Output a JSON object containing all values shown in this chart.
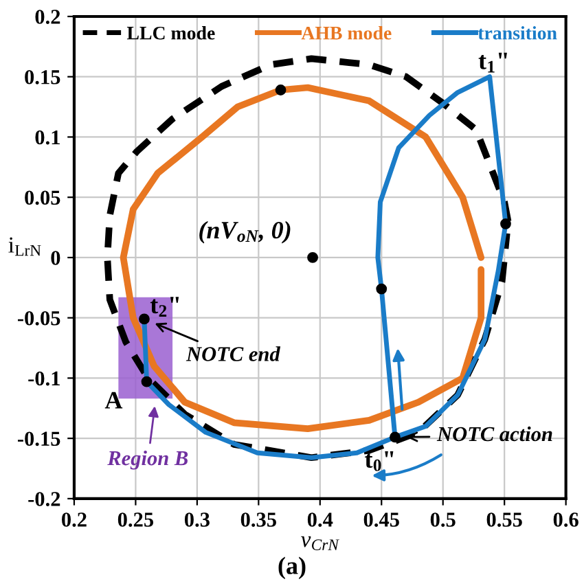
{
  "chart_data": {
    "type": "line",
    "xlabel": "v$_{CrN}$",
    "ylabel": "i$_{LrN}$",
    "xlim": [
      0.2,
      0.6
    ],
    "xticks": [
      0.2,
      0.25,
      0.3,
      0.35,
      0.4,
      0.45,
      0.5,
      0.55,
      0.6
    ],
    "ylim": [
      -0.2,
      0.2
    ],
    "yticks": [
      -0.2,
      -0.15,
      -0.1,
      -0.05,
      0,
      0.05,
      0.1,
      0.15,
      0.2
    ],
    "grid": true,
    "legend": "top",
    "series": [
      {
        "name": "LLC mode",
        "line_style": "dashed",
        "color": "#000000",
        "x": [
          0.553,
          0.55,
          0.527,
          0.5,
          0.47,
          0.44,
          0.393,
          0.36,
          0.32,
          0.28,
          0.251,
          0.236,
          0.229,
          0.227,
          0.229,
          0.242,
          0.26,
          0.29,
          0.33,
          0.393,
          0.44,
          0.48,
          0.512,
          0.534,
          0.548,
          0.552
        ],
        "values": [
          0.03,
          0.046,
          0.106,
          0.128,
          0.15,
          0.16,
          0.165,
          0.16,
          0.142,
          0.115,
          0.088,
          0.07,
          0.035,
          0.0,
          -0.035,
          -0.07,
          -0.1,
          -0.13,
          -0.155,
          -0.166,
          -0.16,
          -0.145,
          -0.114,
          -0.068,
          -0.02,
          0.02
        ]
      },
      {
        "name": "AHB mode",
        "line_style": "solid",
        "color": "#e87722",
        "x": [
          0.531,
          0.516,
          0.486,
          0.44,
          0.39,
          0.368,
          0.333,
          0.304,
          0.268,
          0.248,
          0.24,
          0.248,
          0.265,
          0.29,
          0.33,
          0.39,
          0.44,
          0.48,
          0.516,
          0.531,
          0.531
        ],
        "values": [
          0.0,
          0.05,
          0.1,
          0.13,
          0.141,
          0.139,
          0.125,
          0.1,
          0.07,
          0.04,
          0.0,
          -0.05,
          -0.09,
          -0.12,
          -0.137,
          -0.142,
          -0.135,
          -0.12,
          -0.1,
          -0.05,
          -0.01
        ]
      },
      {
        "name": "transition",
        "line_style": "solid",
        "color": "#1a7cc8",
        "x": [
          0.461,
          0.45,
          0.447,
          0.449,
          0.464,
          0.489,
          0.512,
          0.538,
          0.551,
          0.545,
          0.534,
          0.512,
          0.486,
          0.461,
          0.43,
          0.393,
          0.349,
          0.307,
          0.277,
          0.259,
          0.257
        ],
        "values": [
          -0.149,
          -0.026,
          0.0,
          0.046,
          0.091,
          0.118,
          0.137,
          0.15,
          0.028,
          -0.011,
          -0.068,
          -0.114,
          -0.14,
          -0.149,
          -0.162,
          -0.166,
          -0.162,
          -0.145,
          -0.122,
          -0.103,
          -0.051
        ]
      },
      {
        "type": "scatter",
        "marker": "circle",
        "color": "#000000",
        "x": [
          0.368,
          0.551,
          0.45,
          0.461,
          0.259,
          0.257,
          0.394
        ],
        "values": [
          0.139,
          0.028,
          -0.026,
          -0.149,
          -0.103,
          -0.051,
          0.0
        ]
      }
    ],
    "annotations": [
      {
        "text": "t$_{1}$\"",
        "x": 0.538,
        "y": 0.15
      },
      {
        "text": "t$_{0}$\"",
        "x": 0.461,
        "y": -0.149
      },
      {
        "text": "t$_{2}$\"",
        "x": 0.257,
        "y": -0.051
      },
      {
        "text": "A",
        "x": 0.259,
        "y": -0.103
      },
      {
        "text": "(nV$_{oN}$, 0)",
        "x": 0.394,
        "y": 0.0
      },
      {
        "text": "NOTC end",
        "x": 0.257,
        "y": -0.051
      },
      {
        "text": "NOTC action",
        "x": 0.461,
        "y": -0.149
      },
      "Region B",
      "(a)"
    ]
  }
}
